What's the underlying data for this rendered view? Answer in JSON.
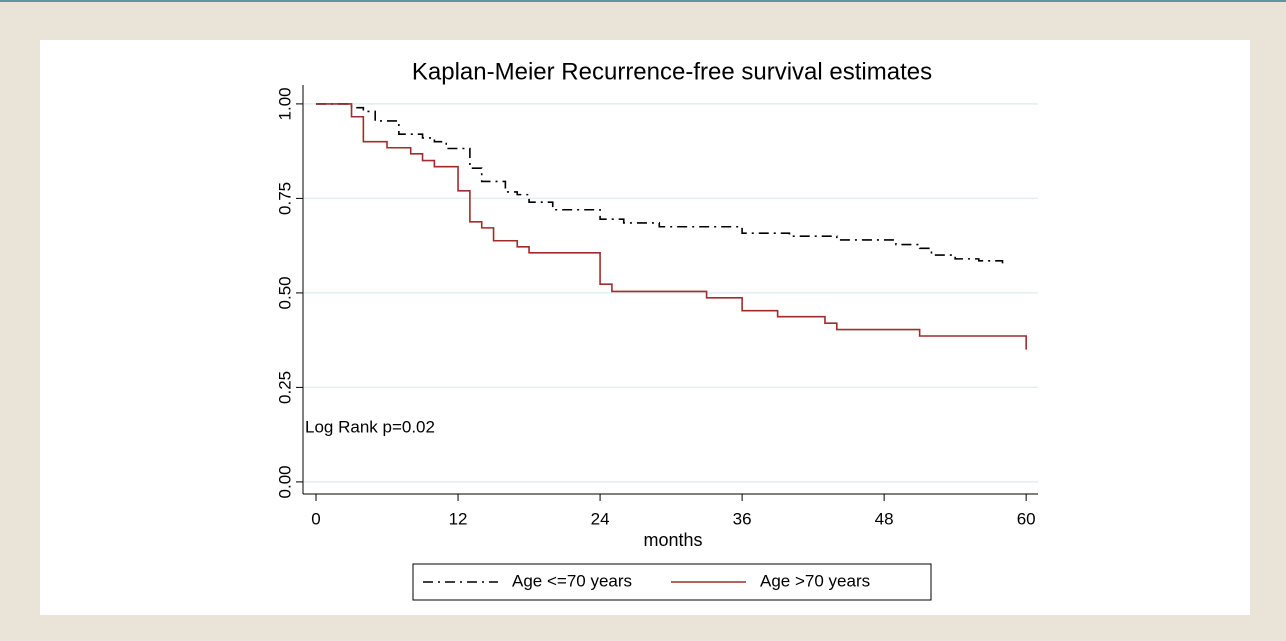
{
  "chart_data": {
    "type": "step",
    "title": "Kaplan-Meier Recurrence-free survival estimates",
    "xlabel": "months",
    "annotation": "Log Rank p=0.02",
    "xlim": [
      -1.1,
      61
    ],
    "ylim": [
      -0.032,
      1.05
    ],
    "xticks": [
      0,
      12,
      24,
      36,
      48,
      60
    ],
    "yticks": [
      {
        "value": 0,
        "label": "0.00"
      },
      {
        "value": 0.25,
        "label": "0.25"
      },
      {
        "value": 0.5,
        "label": "0.50"
      },
      {
        "value": 0.75,
        "label": "0.75"
      },
      {
        "value": 1,
        "label": "1.00"
      }
    ],
    "grid": true,
    "series": [
      {
        "name": "Age <=70 years",
        "color": "#000000",
        "linestyle": "dashdot",
        "x": [
          0,
          3,
          4,
          5,
          7,
          9,
          10,
          11,
          13,
          14,
          16,
          17,
          18,
          20,
          24,
          26,
          29,
          36,
          40,
          44,
          49,
          51,
          52,
          54,
          56,
          58
        ],
        "values": [
          1.0,
          0.99,
          0.98,
          0.955,
          0.92,
          0.91,
          0.9,
          0.882,
          0.83,
          0.795,
          0.767,
          0.76,
          0.74,
          0.72,
          0.695,
          0.685,
          0.675,
          0.658,
          0.65,
          0.64,
          0.628,
          0.618,
          0.6,
          0.59,
          0.585,
          0.575
        ]
      },
      {
        "name": "Age >70 years",
        "color": "#a02c2c",
        "linestyle": "solid",
        "x": [
          0,
          3,
          4,
          6,
          8,
          9,
          10,
          12,
          13,
          14,
          15,
          17,
          18,
          24,
          25,
          33,
          36,
          39,
          43,
          44,
          51,
          60
        ],
        "values": [
          1.0,
          0.966,
          0.9,
          0.884,
          0.868,
          0.85,
          0.834,
          0.77,
          0.688,
          0.672,
          0.638,
          0.622,
          0.606,
          0.523,
          0.504,
          0.487,
          0.453,
          0.437,
          0.42,
          0.403,
          0.386,
          0.35
        ]
      }
    ]
  }
}
